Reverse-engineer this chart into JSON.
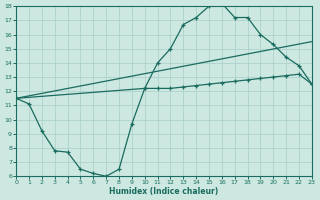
{
  "xlabel": "Humidex (Indice chaleur)",
  "bg_color": "#cce8e0",
  "grid_color": "#a8cfc8",
  "line_color": "#1a6b60",
  "xlim": [
    0,
    23
  ],
  "ylim": [
    6,
    18
  ],
  "xticks": [
    0,
    1,
    2,
    3,
    4,
    5,
    6,
    7,
    8,
    9,
    10,
    11,
    12,
    13,
    14,
    15,
    16,
    17,
    18,
    19,
    20,
    21,
    22,
    23
  ],
  "yticks": [
    6,
    7,
    8,
    9,
    10,
    11,
    12,
    13,
    14,
    15,
    16,
    17,
    18
  ],
  "curve1_x": [
    0,
    10,
    11,
    12,
    13,
    14,
    15,
    16,
    17,
    18,
    19,
    20,
    21,
    22,
    23
  ],
  "curve1_y": [
    11.5,
    12.2,
    14.0,
    15.0,
    16.7,
    17.2,
    18.0,
    18.2,
    17.2,
    17.2,
    16.0,
    15.3,
    14.4,
    13.8,
    12.5
  ],
  "curve2_x": [
    0,
    23
  ],
  "curve2_y": [
    11.5,
    15.5
  ],
  "curve3_x": [
    0,
    1,
    2,
    3,
    4,
    5,
    6,
    7,
    8,
    9,
    10,
    11,
    12,
    13,
    14,
    15,
    16,
    17,
    18,
    19,
    20,
    21,
    22,
    23
  ],
  "curve3_y": [
    11.5,
    11.1,
    9.2,
    7.8,
    7.7,
    6.5,
    6.2,
    6.0,
    6.5,
    9.7,
    12.2,
    12.2,
    12.2,
    12.3,
    12.4,
    12.5,
    12.6,
    12.7,
    12.8,
    12.9,
    13.0,
    13.1,
    13.2,
    12.5
  ]
}
